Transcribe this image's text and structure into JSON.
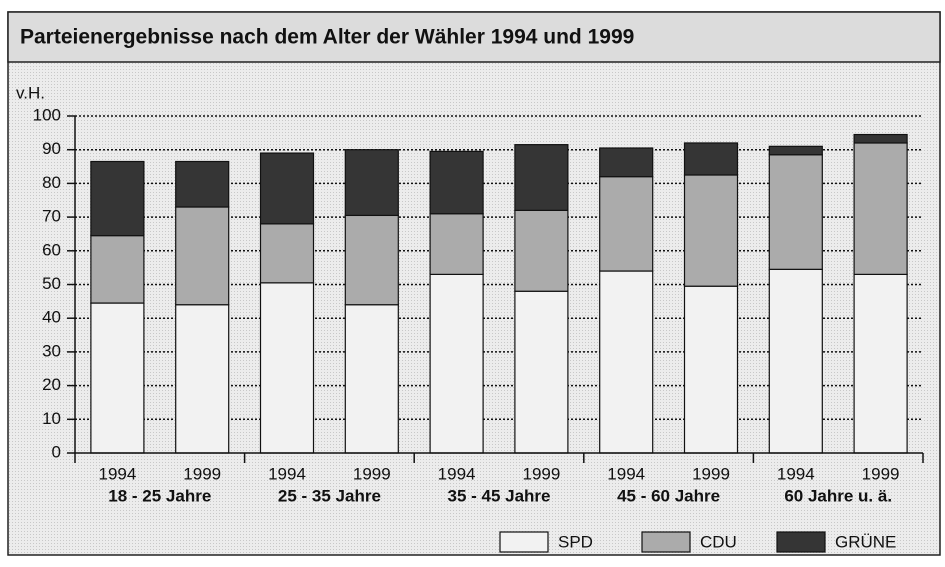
{
  "chart_data": {
    "type": "bar",
    "stacked": true,
    "title": "Parteienergebnisse nach dem Alter der Wähler 1994 und 1999",
    "y_label": "v.H.",
    "categories": [
      "1994",
      "1999",
      "1994",
      "1999",
      "1994",
      "1999",
      "1994",
      "1999",
      "1994",
      "1999"
    ],
    "groups": [
      "18 - 25 Jahre",
      "25 - 35 Jahre",
      "35 - 45 Jahre",
      "45 - 60 Jahre",
      "60 Jahre u. ä."
    ],
    "series": [
      {
        "name": "SPD",
        "color": "#f2f2f2",
        "values": [
          44.5,
          44,
          50.5,
          44,
          53,
          48,
          54,
          49.5,
          54.5,
          53
        ]
      },
      {
        "name": "CDU",
        "color": "#ababab",
        "values": [
          20,
          29,
          17.5,
          26.5,
          18,
          24,
          28,
          33,
          34,
          39
        ]
      },
      {
        "name": "GRÜNE",
        "color": "#353535",
        "values": [
          22,
          13.5,
          21,
          19.5,
          18.5,
          19.5,
          8.5,
          9.5,
          2.5,
          2.5
        ]
      }
    ],
    "ylim": [
      0,
      100
    ],
    "yticks": [
      0,
      10,
      20,
      30,
      40,
      50,
      60,
      70,
      80,
      90,
      100
    ],
    "grid": true,
    "legend": "bottom-right"
  }
}
